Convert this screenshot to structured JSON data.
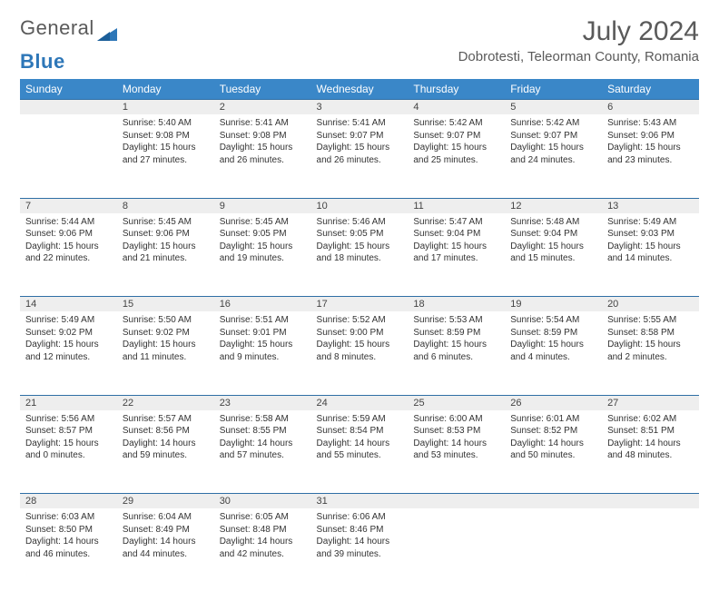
{
  "brand": {
    "part1": "General",
    "part2": "Blue"
  },
  "title": "July 2024",
  "location": "Dobrotesti, Teleorman County, Romania",
  "colors": {
    "header_bg": "#3a87c8",
    "header_text": "#ffffff",
    "daynum_bg": "#eeeeee",
    "daynum_border": "#2f6fa5",
    "body_text": "#333333",
    "title_text": "#5a5a5a",
    "brand_blue": "#2e77b8",
    "page_bg": "#ffffff"
  },
  "day_names": [
    "Sunday",
    "Monday",
    "Tuesday",
    "Wednesday",
    "Thursday",
    "Friday",
    "Saturday"
  ],
  "weeks": [
    [
      {
        "num": "",
        "sunrise": "",
        "sunset": "",
        "daylight": ""
      },
      {
        "num": "1",
        "sunrise": "Sunrise: 5:40 AM",
        "sunset": "Sunset: 9:08 PM",
        "daylight": "Daylight: 15 hours and 27 minutes."
      },
      {
        "num": "2",
        "sunrise": "Sunrise: 5:41 AM",
        "sunset": "Sunset: 9:08 PM",
        "daylight": "Daylight: 15 hours and 26 minutes."
      },
      {
        "num": "3",
        "sunrise": "Sunrise: 5:41 AM",
        "sunset": "Sunset: 9:07 PM",
        "daylight": "Daylight: 15 hours and 26 minutes."
      },
      {
        "num": "4",
        "sunrise": "Sunrise: 5:42 AM",
        "sunset": "Sunset: 9:07 PM",
        "daylight": "Daylight: 15 hours and 25 minutes."
      },
      {
        "num": "5",
        "sunrise": "Sunrise: 5:42 AM",
        "sunset": "Sunset: 9:07 PM",
        "daylight": "Daylight: 15 hours and 24 minutes."
      },
      {
        "num": "6",
        "sunrise": "Sunrise: 5:43 AM",
        "sunset": "Sunset: 9:06 PM",
        "daylight": "Daylight: 15 hours and 23 minutes."
      }
    ],
    [
      {
        "num": "7",
        "sunrise": "Sunrise: 5:44 AM",
        "sunset": "Sunset: 9:06 PM",
        "daylight": "Daylight: 15 hours and 22 minutes."
      },
      {
        "num": "8",
        "sunrise": "Sunrise: 5:45 AM",
        "sunset": "Sunset: 9:06 PM",
        "daylight": "Daylight: 15 hours and 21 minutes."
      },
      {
        "num": "9",
        "sunrise": "Sunrise: 5:45 AM",
        "sunset": "Sunset: 9:05 PM",
        "daylight": "Daylight: 15 hours and 19 minutes."
      },
      {
        "num": "10",
        "sunrise": "Sunrise: 5:46 AM",
        "sunset": "Sunset: 9:05 PM",
        "daylight": "Daylight: 15 hours and 18 minutes."
      },
      {
        "num": "11",
        "sunrise": "Sunrise: 5:47 AM",
        "sunset": "Sunset: 9:04 PM",
        "daylight": "Daylight: 15 hours and 17 minutes."
      },
      {
        "num": "12",
        "sunrise": "Sunrise: 5:48 AM",
        "sunset": "Sunset: 9:04 PM",
        "daylight": "Daylight: 15 hours and 15 minutes."
      },
      {
        "num": "13",
        "sunrise": "Sunrise: 5:49 AM",
        "sunset": "Sunset: 9:03 PM",
        "daylight": "Daylight: 15 hours and 14 minutes."
      }
    ],
    [
      {
        "num": "14",
        "sunrise": "Sunrise: 5:49 AM",
        "sunset": "Sunset: 9:02 PM",
        "daylight": "Daylight: 15 hours and 12 minutes."
      },
      {
        "num": "15",
        "sunrise": "Sunrise: 5:50 AM",
        "sunset": "Sunset: 9:02 PM",
        "daylight": "Daylight: 15 hours and 11 minutes."
      },
      {
        "num": "16",
        "sunrise": "Sunrise: 5:51 AM",
        "sunset": "Sunset: 9:01 PM",
        "daylight": "Daylight: 15 hours and 9 minutes."
      },
      {
        "num": "17",
        "sunrise": "Sunrise: 5:52 AM",
        "sunset": "Sunset: 9:00 PM",
        "daylight": "Daylight: 15 hours and 8 minutes."
      },
      {
        "num": "18",
        "sunrise": "Sunrise: 5:53 AM",
        "sunset": "Sunset: 8:59 PM",
        "daylight": "Daylight: 15 hours and 6 minutes."
      },
      {
        "num": "19",
        "sunrise": "Sunrise: 5:54 AM",
        "sunset": "Sunset: 8:59 PM",
        "daylight": "Daylight: 15 hours and 4 minutes."
      },
      {
        "num": "20",
        "sunrise": "Sunrise: 5:55 AM",
        "sunset": "Sunset: 8:58 PM",
        "daylight": "Daylight: 15 hours and 2 minutes."
      }
    ],
    [
      {
        "num": "21",
        "sunrise": "Sunrise: 5:56 AM",
        "sunset": "Sunset: 8:57 PM",
        "daylight": "Daylight: 15 hours and 0 minutes."
      },
      {
        "num": "22",
        "sunrise": "Sunrise: 5:57 AM",
        "sunset": "Sunset: 8:56 PM",
        "daylight": "Daylight: 14 hours and 59 minutes."
      },
      {
        "num": "23",
        "sunrise": "Sunrise: 5:58 AM",
        "sunset": "Sunset: 8:55 PM",
        "daylight": "Daylight: 14 hours and 57 minutes."
      },
      {
        "num": "24",
        "sunrise": "Sunrise: 5:59 AM",
        "sunset": "Sunset: 8:54 PM",
        "daylight": "Daylight: 14 hours and 55 minutes."
      },
      {
        "num": "25",
        "sunrise": "Sunrise: 6:00 AM",
        "sunset": "Sunset: 8:53 PM",
        "daylight": "Daylight: 14 hours and 53 minutes."
      },
      {
        "num": "26",
        "sunrise": "Sunrise: 6:01 AM",
        "sunset": "Sunset: 8:52 PM",
        "daylight": "Daylight: 14 hours and 50 minutes."
      },
      {
        "num": "27",
        "sunrise": "Sunrise: 6:02 AM",
        "sunset": "Sunset: 8:51 PM",
        "daylight": "Daylight: 14 hours and 48 minutes."
      }
    ],
    [
      {
        "num": "28",
        "sunrise": "Sunrise: 6:03 AM",
        "sunset": "Sunset: 8:50 PM",
        "daylight": "Daylight: 14 hours and 46 minutes."
      },
      {
        "num": "29",
        "sunrise": "Sunrise: 6:04 AM",
        "sunset": "Sunset: 8:49 PM",
        "daylight": "Daylight: 14 hours and 44 minutes."
      },
      {
        "num": "30",
        "sunrise": "Sunrise: 6:05 AM",
        "sunset": "Sunset: 8:48 PM",
        "daylight": "Daylight: 14 hours and 42 minutes."
      },
      {
        "num": "31",
        "sunrise": "Sunrise: 6:06 AM",
        "sunset": "Sunset: 8:46 PM",
        "daylight": "Daylight: 14 hours and 39 minutes."
      },
      {
        "num": "",
        "sunrise": "",
        "sunset": "",
        "daylight": ""
      },
      {
        "num": "",
        "sunrise": "",
        "sunset": "",
        "daylight": ""
      },
      {
        "num": "",
        "sunrise": "",
        "sunset": "",
        "daylight": ""
      }
    ]
  ]
}
